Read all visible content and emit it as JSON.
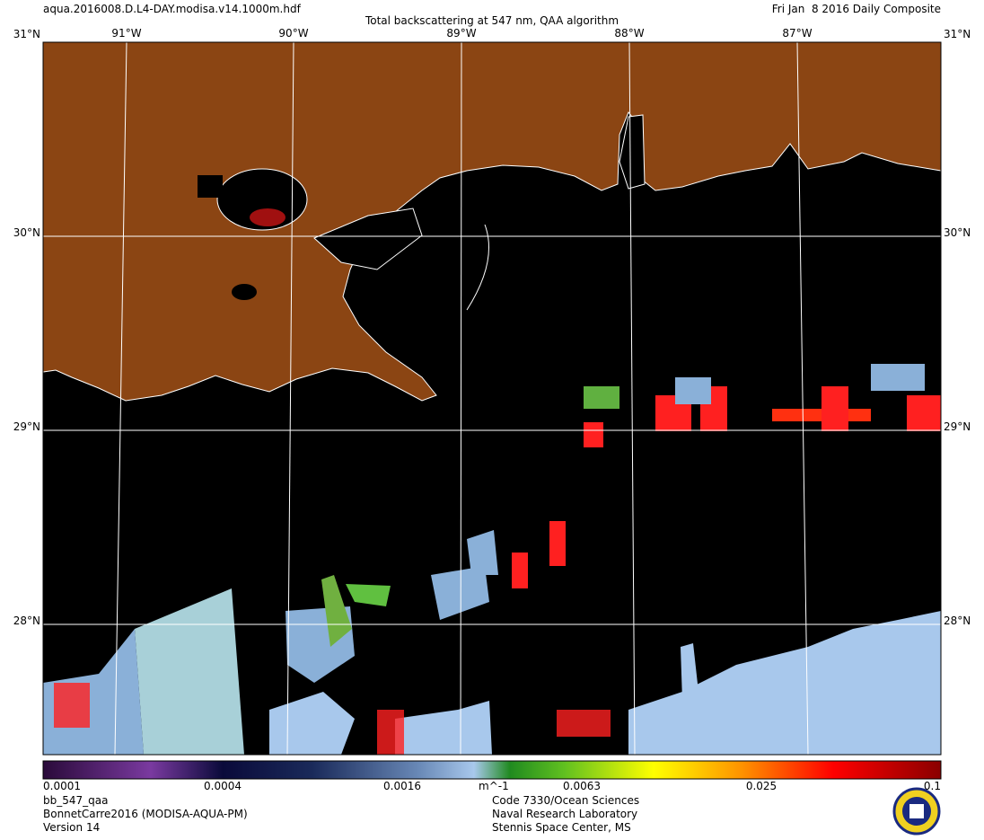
{
  "header": {
    "file": "aqua.2016008.D.L4-DAY.modisa.v14.1000m.hdf",
    "title": "Total backscattering at 547 nm, QAA algorithm",
    "date": "Fri Jan  8 2016 Daily Composite"
  },
  "map": {
    "lon_labels": [
      "91°W",
      "90°W",
      "89°W",
      "88°W",
      "87°W"
    ],
    "lat_labels": [
      "31°N",
      "30°N",
      "29°N",
      "28°N"
    ]
  },
  "colorbar": {
    "labels": [
      "0.0001",
      "0.0004",
      "0.0016",
      "0.0063",
      "0.025",
      "0.1"
    ],
    "unit": "m^-1"
  },
  "footer": {
    "left": [
      "bb_547_qaa",
      "BonnetCarre2016 (MODISA-AQUA-PM)",
      "Version 14"
    ],
    "right": [
      "Code 7330/Ocean Sciences",
      "Naval Research Laboratory",
      "Stennis Space Center, MS"
    ]
  }
}
